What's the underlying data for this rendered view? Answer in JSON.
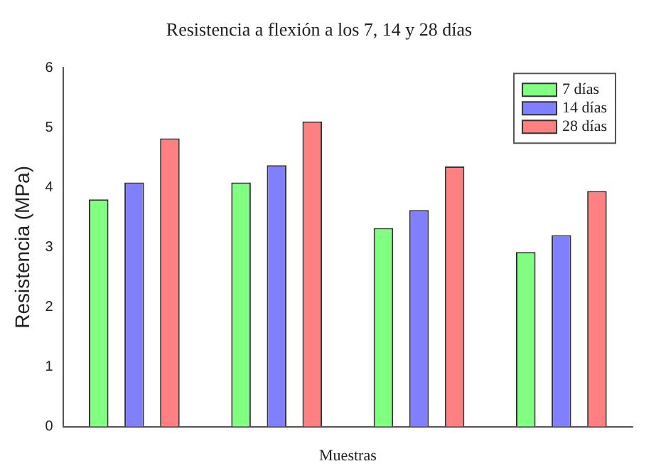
{
  "chart_data": {
    "type": "bar",
    "title": "Resistencia a flexión a los 7, 14 y 28 días",
    "xlabel": "Muestras",
    "ylabel": "Resistencia (MPa)",
    "categories": [
      null,
      null,
      null,
      null
    ],
    "series": [
      {
        "name": "7 días",
        "color": "#80ff80",
        "values": [
          3.8,
          4.08,
          3.32,
          2.92
        ]
      },
      {
        "name": "14 días",
        "color": "#8080ff",
        "values": [
          4.08,
          4.37,
          3.62,
          3.2
        ]
      },
      {
        "name": "28 días",
        "color": "#ff8080",
        "values": [
          4.82,
          5.1,
          4.35,
          3.94
        ]
      }
    ],
    "ylim": [
      0,
      6
    ],
    "yticks": [
      0,
      1,
      2,
      3,
      4,
      5,
      6
    ],
    "grid": false,
    "legend": "top right"
  }
}
